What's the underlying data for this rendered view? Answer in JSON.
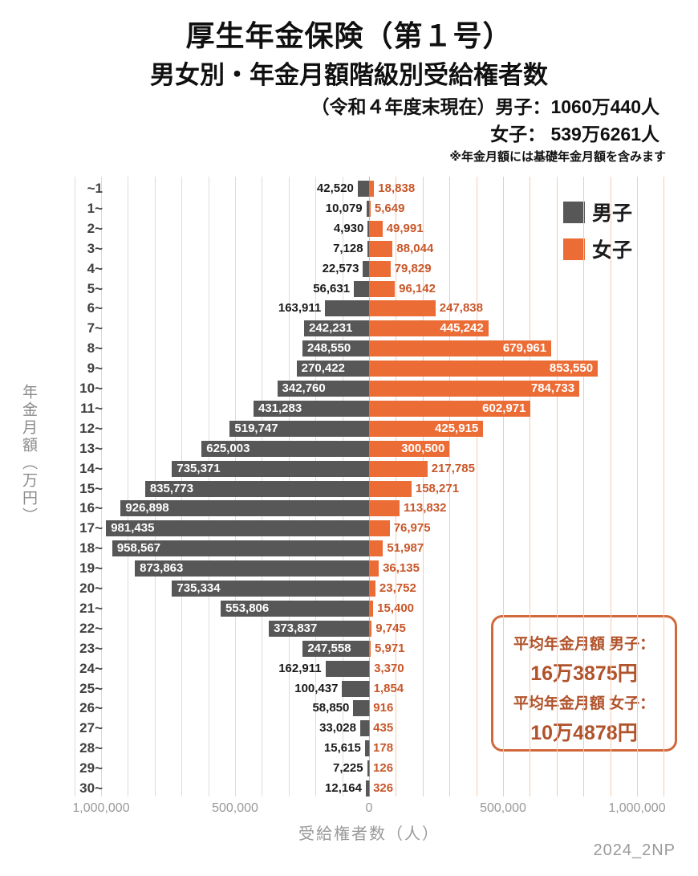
{
  "header": {
    "title1": "厚生年金保険（第１号）",
    "title2": "男女別・年金月額階級別受給権者数",
    "asof_male": "（令和４年度末現在）男子：1060万440人",
    "asof_female": "女子： 539万6261人",
    "note": "※年金月額には基礎年金月額を含みます"
  },
  "legend": {
    "male": "男子",
    "female": "女子"
  },
  "chart_data": {
    "type": "bar",
    "variant": "population-pyramid-horizontal",
    "title": "男女別・年金月額階級別受給権者数",
    "categories": [
      "~1",
      "1~",
      "2~",
      "3~",
      "4~",
      "5~",
      "6~",
      "7~",
      "8~",
      "9~",
      "10~",
      "11~",
      "12~",
      "13~",
      "14~",
      "15~",
      "16~",
      "17~",
      "18~",
      "19~",
      "20~",
      "21~",
      "22~",
      "23~",
      "24~",
      "25~",
      "26~",
      "27~",
      "28~",
      "29~",
      "30~"
    ],
    "series": [
      {
        "name": "男子",
        "side": "left",
        "color": "#575757",
        "values": [
          42520,
          10079,
          4930,
          7128,
          22573,
          56631,
          163911,
          242231,
          248550,
          270422,
          342760,
          431283,
          519747,
          625003,
          735371,
          835773,
          926898,
          981435,
          958567,
          873863,
          735334,
          553806,
          373837,
          247558,
          162911,
          100437,
          58850,
          33028,
          15615,
          7225,
          12164
        ]
      },
      {
        "name": "女子",
        "side": "right",
        "color": "#ec6c35",
        "values": [
          18838,
          5649,
          49991,
          88044,
          79829,
          96142,
          247838,
          445242,
          679961,
          853550,
          784733,
          602971,
          425915,
          300500,
          217785,
          158271,
          113832,
          76975,
          51987,
          36135,
          23752,
          15400,
          9745,
          5971,
          3370,
          1854,
          916,
          435,
          178,
          126,
          326
        ]
      }
    ],
    "xlabel": "受給権者数（人）",
    "ylabel": "年金月額（万円）",
    "xlim_each_side": [
      0,
      1000000
    ],
    "gridline_step": 100000,
    "x_ticks": [
      {
        "value": -1000000,
        "label": "1,000,000"
      },
      {
        "value": -500000,
        "label": "500,000"
      },
      {
        "value": 0,
        "label": "0"
      },
      {
        "value": 500000,
        "label": "500,000"
      },
      {
        "value": 1000000,
        "label": "1,000,000"
      }
    ],
    "legend_position": "top-right"
  },
  "annotation": {
    "line1": "平均年金月額 男子：",
    "value1": "16万3875円",
    "line2": "平均年金月額 女子：",
    "value2": "10万4878円"
  },
  "watermark": "2024_2NP",
  "colors": {
    "male_bar": "#575757",
    "female_bar": "#ec6c35",
    "male_label": "#1a1a1a",
    "female_label": "#c8572a",
    "inside_label": "#ffffff",
    "grid_left": "#dcdcdc",
    "grid_right": "#f5cbb0",
    "grid_center": "#c2c2c2",
    "axis_text": "#999999",
    "annotation_text": "#b0522a",
    "annotation_border": "#d2693c"
  }
}
